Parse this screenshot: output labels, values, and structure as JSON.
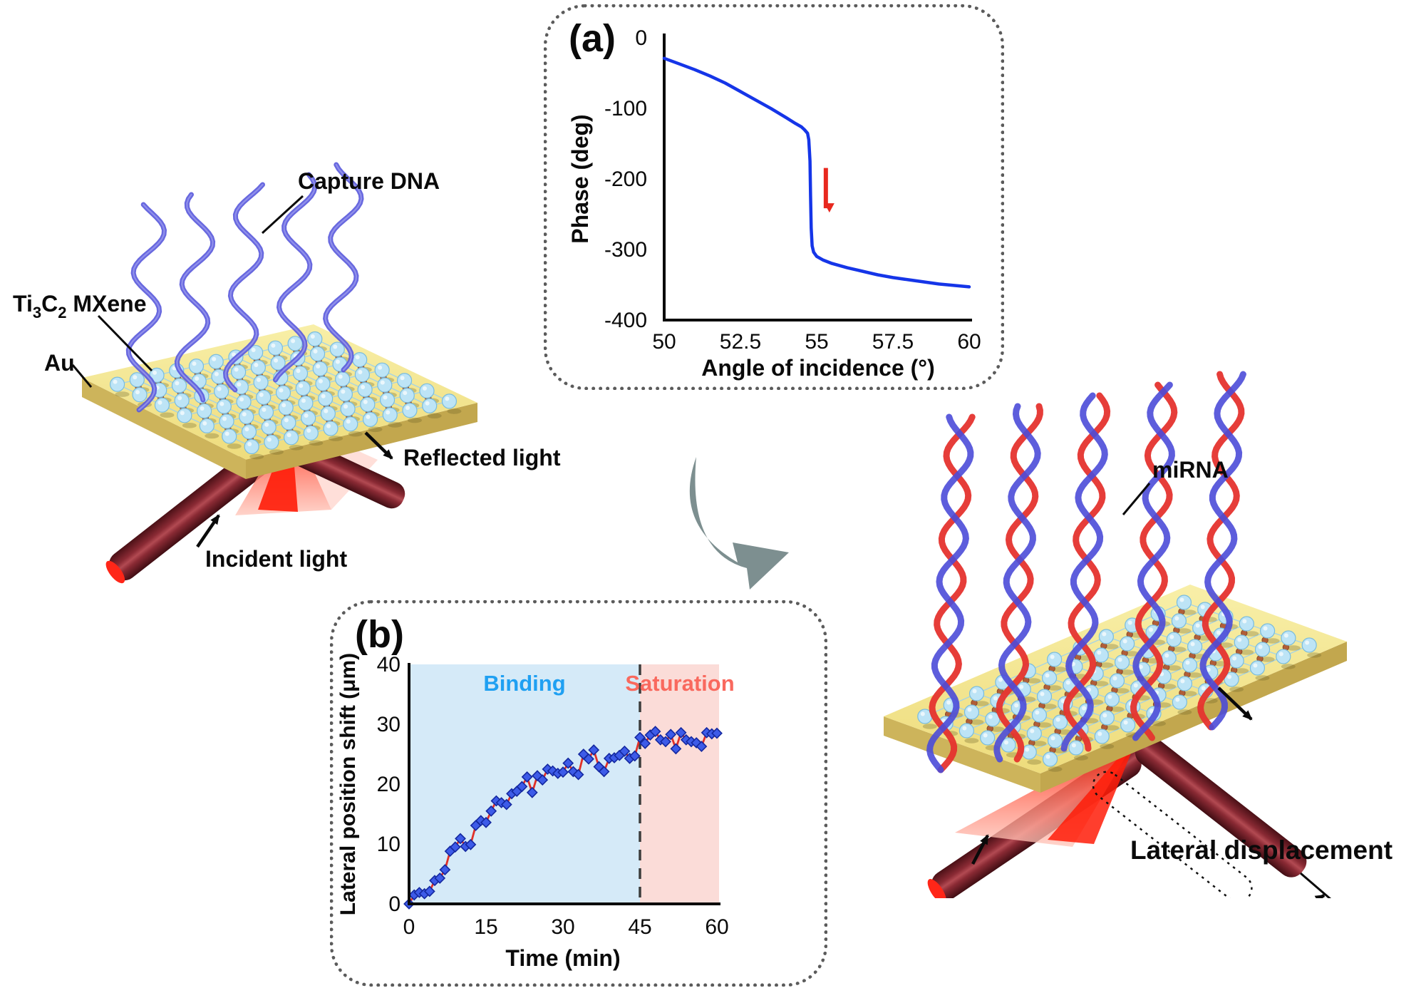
{
  "panel_a": {
    "tag": "(a)",
    "ylabel": "Phase (deg)",
    "xlabel": "Angle of incidence (°)",
    "yticks": [
      "0",
      "-100",
      "-200",
      "-300",
      "-400"
    ],
    "xticks": [
      "50",
      "52.5",
      "55",
      "57.5",
      "60"
    ]
  },
  "panel_b": {
    "tag": "(b)",
    "ylabel": "Lateral position shift (μm)",
    "xlabel": "Time (min)",
    "yticks": [
      "0",
      "10",
      "20",
      "30",
      "40"
    ],
    "xticks": [
      "0",
      "15",
      "30",
      "45",
      "60"
    ],
    "region_binding": "Binding",
    "region_saturation": "Saturation"
  },
  "left_panel": {
    "capture_dna": "Capture DNA",
    "mxene_pre": "Ti",
    "mxene_sub1": "3",
    "mxene_mid": "C",
    "mxene_sub2": "2",
    "mxene_post": " MXene",
    "au": "Au",
    "reflected": "Reflected light",
    "incident": "Incident light"
  },
  "right_panel": {
    "mirna": "miRNA",
    "lateral": "Lateral displacement"
  },
  "chart_data": [
    {
      "type": "line",
      "title": "SPR phase vs angle of incidence",
      "xlabel": "Angle of incidence (°)",
      "ylabel": "Phase (deg)",
      "xlim": [
        50,
        60
      ],
      "ylim": [
        -400,
        0
      ],
      "grid": false,
      "x": [
        50,
        50.5,
        51,
        51.5,
        52,
        52.5,
        53,
        53.5,
        54,
        54.3,
        54.5,
        54.6,
        54.7,
        54.74,
        54.78,
        54.8,
        54.82,
        54.85,
        54.9,
        55,
        55.2,
        55.5,
        56,
        56.5,
        57,
        57.5,
        58,
        58.5,
        59,
        59.5,
        60
      ],
      "y": [
        -30,
        -38,
        -46,
        -55,
        -65,
        -77,
        -89,
        -101,
        -114,
        -122,
        -127,
        -131,
        -136,
        -145,
        -175,
        -225,
        -270,
        -295,
        -304,
        -310,
        -315,
        -320,
        -326,
        -331,
        -336,
        -340,
        -343,
        -346,
        -349,
        -351,
        -353
      ],
      "annotation": {
        "label": "phase jump arrow",
        "x": 55.3,
        "y_from": -185,
        "y_to": -242
      }
    },
    {
      "type": "scatter",
      "title": "Lateral position shift vs time",
      "xlabel": "Time (min)",
      "ylabel": "Lateral position shift (μm)",
      "xlim": [
        0,
        60
      ],
      "ylim": [
        0,
        40
      ],
      "grid": false,
      "regions": [
        {
          "label": "Binding",
          "range": [
            0,
            45
          ]
        },
        {
          "label": "Saturation",
          "range": [
            45,
            60
          ]
        }
      ],
      "divider_min": 45,
      "x": [
        0,
        1,
        2,
        3,
        4,
        5,
        6,
        7,
        8,
        9,
        10,
        11,
        12,
        13,
        14,
        15,
        16,
        17,
        18,
        19,
        20,
        21,
        22,
        23,
        24,
        25,
        26,
        27,
        28,
        29,
        30,
        31,
        32,
        33,
        34,
        35,
        36,
        37,
        38,
        39,
        40,
        41,
        42,
        43,
        44,
        45,
        46,
        47,
        48,
        49,
        50,
        51,
        52,
        53,
        54,
        55,
        56,
        57,
        58,
        59,
        60
      ],
      "y": [
        0,
        1.5,
        1.9,
        1.7,
        2.1,
        3.9,
        4.3,
        5.7,
        8.8,
        9.5,
        10.9,
        9.6,
        9.9,
        13.1,
        13.9,
        13.6,
        15.5,
        17.2,
        16.9,
        16.6,
        18.4,
        18.8,
        19.6,
        21.2,
        18.6,
        21.4,
        20.7,
        22.5,
        22.2,
        21.8,
        22.0,
        23.5,
        22.1,
        21.6,
        25.0,
        24.2,
        25.7,
        22.9,
        22.1,
        24.3,
        24.4,
        24.8,
        25.5,
        24.3,
        24.7,
        27.8,
        26.8,
        28.2,
        28.8,
        27.4,
        27.1,
        28.3,
        25.9,
        28.6,
        27.4,
        27.1,
        26.9,
        26.3,
        28.6,
        28.4,
        28.5
      ]
    }
  ],
  "colors": {
    "curve_blue": "#1535E8",
    "arrow_red": "#E8281E",
    "marker_blue": "#3D5BE8",
    "line_red": "#E03028",
    "binding_text": "#1FA0F2",
    "binding_bg": "#D5EAF8",
    "saturation_text": "#F9695E",
    "saturation_bg": "#FBDCD8",
    "gold_top": "#F5E995",
    "gold_side": "#CDB45B",
    "atom_blue": "#BDE4F6",
    "atom_brown": "#B05E38",
    "ribbon_blue": "#5B5BDC",
    "helix_red": "#E5332E",
    "helix_blue": "#4B4BD8",
    "beam_dark": "#4A1016",
    "fan_red": "#FF1A00",
    "curved_arrow_gray": "#7D8F90"
  }
}
